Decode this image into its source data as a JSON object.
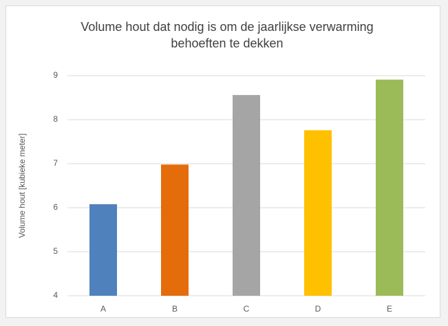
{
  "chart_data": {
    "type": "bar",
    "title": "Volume hout dat nodig is om de jaarlijkse verwarming behoeften te dekken",
    "y_label": "Volume hout [kubieke meter]",
    "categories": [
      "A",
      "B",
      "C",
      "D",
      "E"
    ],
    "values": [
      6.08,
      6.98,
      8.56,
      7.76,
      8.91
    ],
    "colors": [
      "#4f81bd",
      "#e46c0a",
      "#a5a5a5",
      "#ffc000",
      "#9bbb59"
    ],
    "ylim": [
      4,
      9
    ],
    "yticks": [
      4,
      5,
      6,
      7,
      8,
      9
    ],
    "grid": true
  }
}
